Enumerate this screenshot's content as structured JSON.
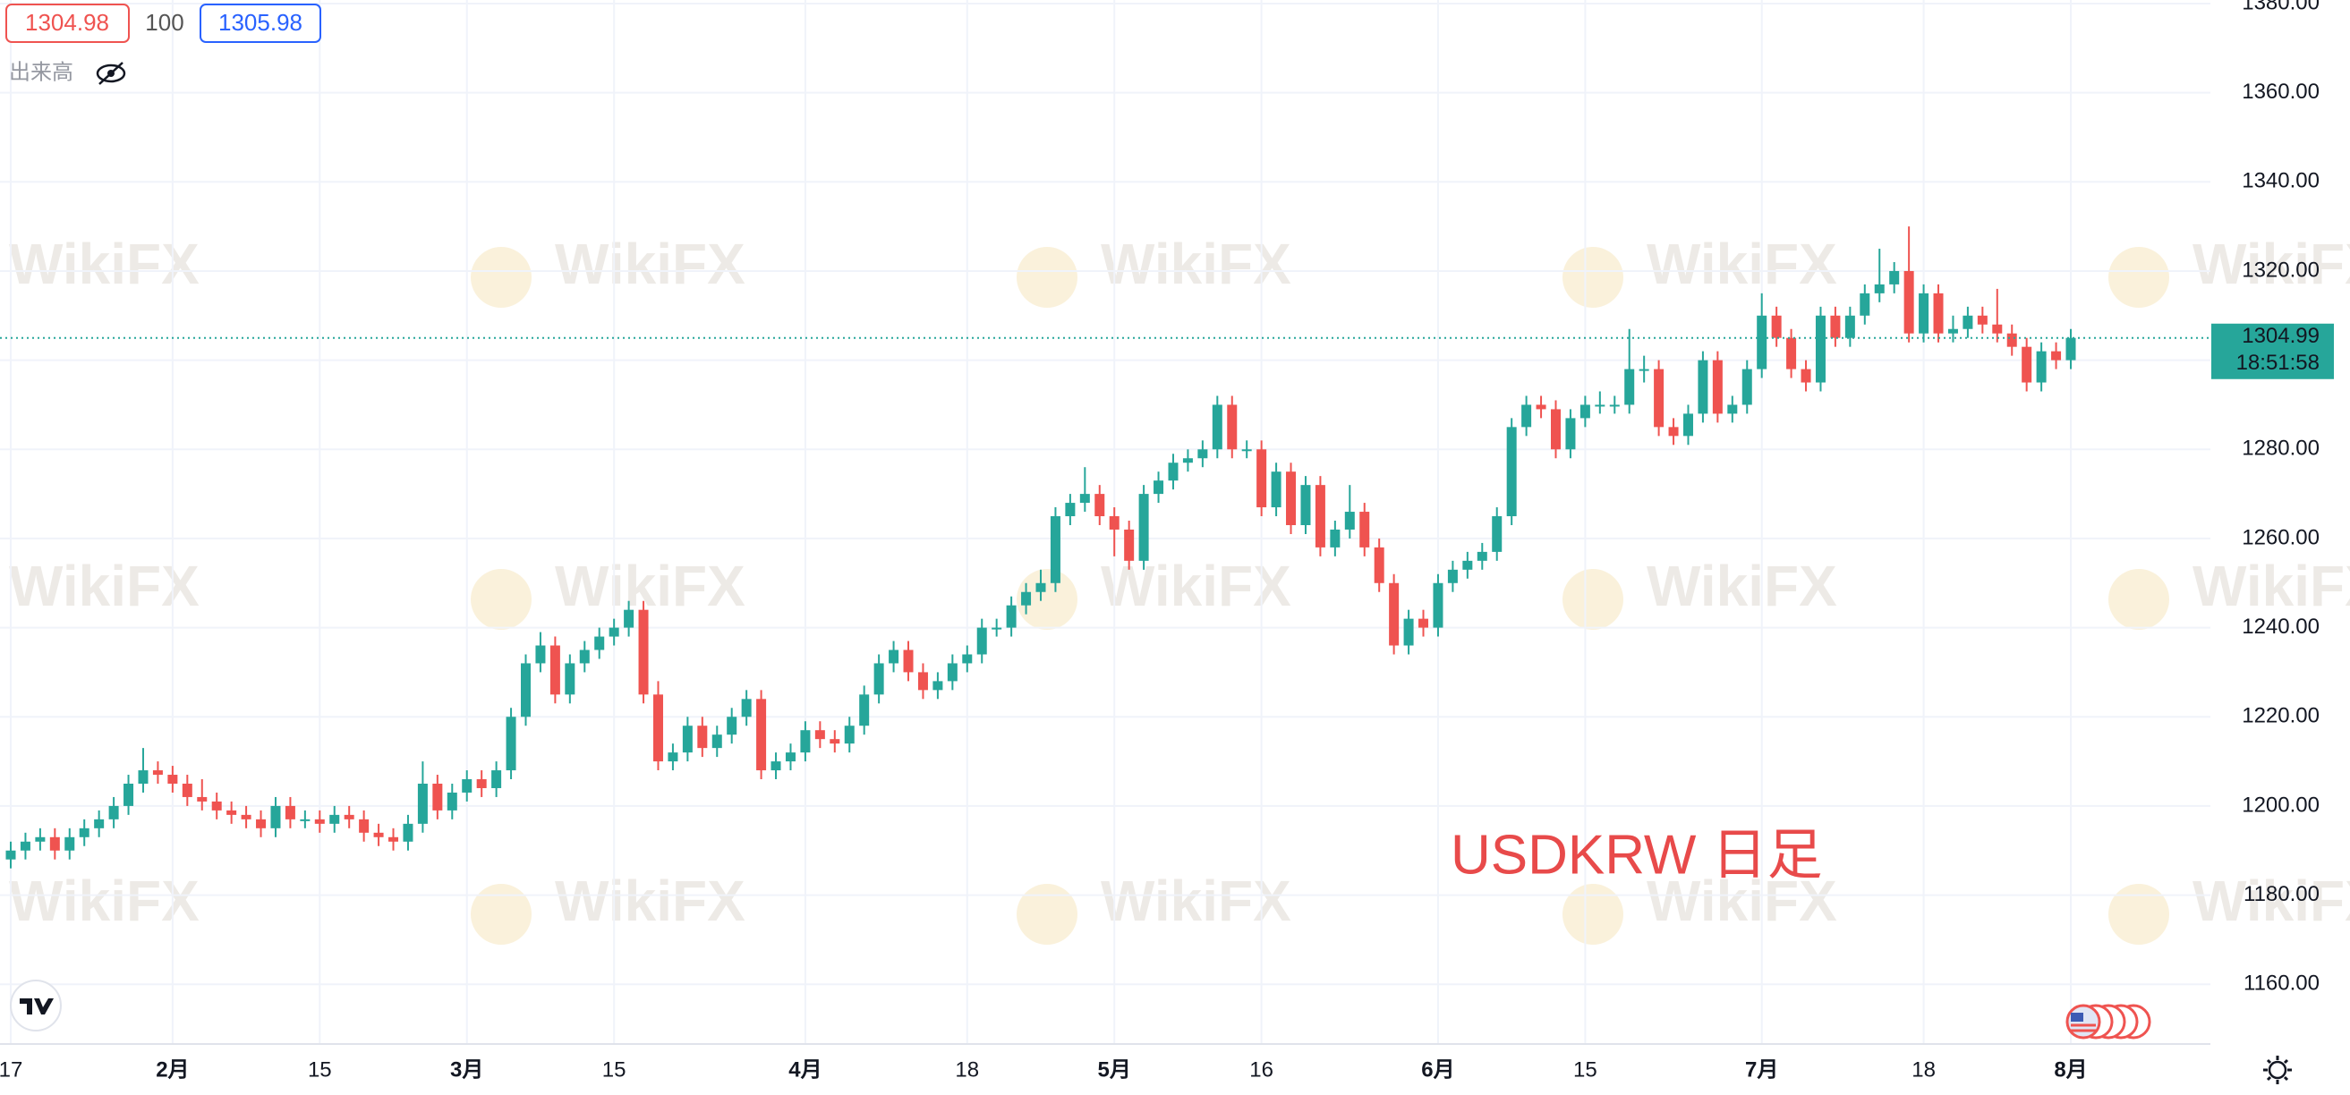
{
  "chart_data": {
    "type": "candlestick",
    "bid": 1304.98,
    "spread": 100,
    "ask": 1305.98,
    "volume_label": "出来高",
    "annotation": "USDKRW 日足",
    "watermark": "WikiFX",
    "last_price": 1304.99,
    "countdown": "18:51:58",
    "up_color": "#26a69a",
    "down_color": "#ef5350",
    "grid": true,
    "x": [
      "01-17",
      "01-18",
      "01-19",
      "01-20",
      "01-21",
      "01-24",
      "01-25",
      "01-26",
      "01-27",
      "01-28",
      "01-31",
      "02-01",
      "02-02",
      "02-03",
      "02-04",
      "02-07",
      "02-08",
      "02-09",
      "02-10",
      "02-11",
      "02-14",
      "02-15",
      "02-16",
      "02-17",
      "02-18",
      "02-21",
      "02-22",
      "02-23",
      "02-24",
      "02-25",
      "02-28",
      "03-01",
      "03-02",
      "03-03",
      "03-04",
      "03-07",
      "03-08",
      "03-09",
      "03-10",
      "03-11",
      "03-14",
      "03-15",
      "03-16",
      "03-17",
      "03-18",
      "03-21",
      "03-22",
      "03-23",
      "03-24",
      "03-25",
      "03-28",
      "03-29",
      "03-30",
      "03-31",
      "04-01",
      "04-04",
      "04-05",
      "04-06",
      "04-07",
      "04-08",
      "04-11",
      "04-12",
      "04-13",
      "04-14",
      "04-15",
      "04-18",
      "04-19",
      "04-20",
      "04-21",
      "04-22",
      "04-25",
      "04-26",
      "04-27",
      "04-28",
      "04-29",
      "05-02",
      "05-03",
      "05-04",
      "05-05",
      "05-06",
      "05-09",
      "05-10",
      "05-11",
      "05-12",
      "05-13",
      "05-16",
      "05-17",
      "05-18",
      "05-19",
      "05-20",
      "05-23",
      "05-24",
      "05-25",
      "05-26",
      "05-27",
      "05-30",
      "05-31",
      "06-01",
      "06-02",
      "06-03",
      "06-06",
      "06-07",
      "06-08",
      "06-09",
      "06-10",
      "06-13",
      "06-14",
      "06-15",
      "06-16",
      "06-17",
      "06-20",
      "06-21",
      "06-22",
      "06-23",
      "06-24",
      "06-27",
      "06-28",
      "06-29",
      "06-30",
      "07-01",
      "07-04",
      "07-05",
      "07-06",
      "07-07",
      "07-08",
      "07-11",
      "07-12",
      "07-13",
      "07-14",
      "07-15",
      "07-18",
      "07-19",
      "07-20",
      "07-21",
      "07-22",
      "07-25",
      "07-26",
      "07-27",
      "07-28",
      "07-29",
      "08-01"
    ],
    "open": [
      1188,
      1190,
      1192,
      1193,
      1190,
      1193,
      1195,
      1197,
      1200,
      1205,
      1208,
      1207,
      1205,
      1202,
      1201,
      1199,
      1198,
      1197,
      1195,
      1200,
      1197,
      1197,
      1196,
      1198,
      1197,
      1194,
      1193,
      1192,
      1196,
      1205,
      1199,
      1203,
      1206,
      1204,
      1208,
      1220,
      1232,
      1236,
      1225,
      1232,
      1235,
      1238,
      1240,
      1244,
      1225,
      1210,
      1212,
      1218,
      1213,
      1216,
      1220,
      1224,
      1208,
      1210,
      1212,
      1217,
      1215,
      1214,
      1218,
      1225,
      1232,
      1235,
      1230,
      1226,
      1228,
      1232,
      1234,
      1240,
      1240,
      1245,
      1248,
      1250,
      1265,
      1268,
      1270,
      1265,
      1262,
      1255,
      1270,
      1273,
      1277,
      1278,
      1280,
      1290,
      1280,
      1280,
      1267,
      1275,
      1263,
      1272,
      1258,
      1262,
      1266,
      1258,
      1250,
      1236,
      1242,
      1240,
      1250,
      1253,
      1255,
      1257,
      1265,
      1285,
      1290,
      1289,
      1280,
      1287,
      1290,
      1290,
      1290,
      1298,
      1298,
      1285,
      1283,
      1288,
      1300,
      1288,
      1290,
      1298,
      1310,
      1305,
      1298,
      1295,
      1310,
      1305,
      1310,
      1315,
      1317,
      1320,
      1306,
      1315,
      1306,
      1307,
      1310,
      1308,
      1306,
      1303,
      1295,
      1302,
      1300
    ],
    "high": [
      1192,
      1194,
      1195,
      1195,
      1195,
      1197,
      1199,
      1202,
      1207,
      1213,
      1210,
      1209,
      1207,
      1206,
      1203,
      1201,
      1200,
      1199,
      1202,
      1202,
      1199,
      1199,
      1200,
      1200,
      1199,
      1196,
      1195,
      1198,
      1210,
      1207,
      1205,
      1208,
      1208,
      1210,
      1222,
      1234,
      1239,
      1238,
      1234,
      1237,
      1240,
      1242,
      1246,
      1246,
      1228,
      1214,
      1220,
      1220,
      1218,
      1222,
      1226,
      1226,
      1212,
      1214,
      1219,
      1219,
      1217,
      1220,
      1227,
      1234,
      1237,
      1237,
      1232,
      1230,
      1234,
      1236,
      1242,
      1242,
      1247,
      1250,
      1253,
      1267,
      1270,
      1276,
      1272,
      1267,
      1264,
      1272,
      1275,
      1279,
      1280,
      1282,
      1292,
      1292,
      1282,
      1282,
      1277,
      1277,
      1274,
      1274,
      1264,
      1272,
      1268,
      1260,
      1252,
      1244,
      1244,
      1252,
      1255,
      1257,
      1259,
      1267,
      1287,
      1292,
      1292,
      1291,
      1289,
      1292,
      1293,
      1292,
      1307,
      1301,
      1300,
      1287,
      1290,
      1302,
      1302,
      1292,
      1300,
      1315,
      1312,
      1307,
      1300,
      1312,
      1312,
      1312,
      1317,
      1325,
      1322,
      1330,
      1317,
      1317,
      1310,
      1312,
      1312,
      1316,
      1308,
      1305,
      1304,
      1304,
      1307
    ],
    "low": [
      1186,
      1188,
      1190,
      1188,
      1188,
      1191,
      1193,
      1195,
      1198,
      1203,
      1205,
      1203,
      1200,
      1199,
      1197,
      1196,
      1195,
      1193,
      1193,
      1195,
      1195,
      1194,
      1194,
      1195,
      1192,
      1191,
      1190,
      1190,
      1194,
      1197,
      1197,
      1201,
      1202,
      1202,
      1206,
      1218,
      1230,
      1223,
      1223,
      1230,
      1233,
      1236,
      1238,
      1223,
      1208,
      1208,
      1210,
      1211,
      1211,
      1214,
      1218,
      1206,
      1206,
      1208,
      1210,
      1213,
      1212,
      1212,
      1216,
      1223,
      1230,
      1228,
      1224,
      1224,
      1226,
      1230,
      1232,
      1238,
      1238,
      1243,
      1246,
      1248,
      1263,
      1266,
      1263,
      1256,
      1253,
      1253,
      1268,
      1271,
      1275,
      1276,
      1278,
      1278,
      1278,
      1265,
      1265,
      1261,
      1261,
      1256,
      1256,
      1260,
      1256,
      1248,
      1234,
      1234,
      1238,
      1238,
      1248,
      1251,
      1253,
      1255,
      1263,
      1283,
      1287,
      1278,
      1278,
      1285,
      1288,
      1288,
      1288,
      1295,
      1283,
      1281,
      1281,
      1286,
      1286,
      1286,
      1288,
      1296,
      1303,
      1296,
      1293,
      1293,
      1303,
      1303,
      1308,
      1313,
      1315,
      1304,
      1304,
      1304,
      1304,
      1305,
      1306,
      1304,
      1301,
      1293,
      1293,
      1298,
      1298
    ],
    "close": [
      1190,
      1192,
      1193,
      1190,
      1193,
      1195,
      1197,
      1200,
      1205,
      1208,
      1207,
      1205,
      1202,
      1201,
      1199,
      1198,
      1197,
      1195,
      1200,
      1197,
      1197,
      1196,
      1198,
      1197,
      1194,
      1193,
      1192,
      1196,
      1205,
      1199,
      1203,
      1206,
      1204,
      1208,
      1220,
      1232,
      1236,
      1225,
      1232,
      1235,
      1238,
      1240,
      1244,
      1225,
      1210,
      1212,
      1218,
      1213,
      1216,
      1220,
      1224,
      1208,
      1210,
      1212,
      1217,
      1215,
      1214,
      1218,
      1225,
      1232,
      1235,
      1230,
      1226,
      1228,
      1232,
      1234,
      1240,
      1240,
      1245,
      1248,
      1250,
      1265,
      1268,
      1270,
      1265,
      1262,
      1255,
      1270,
      1273,
      1277,
      1278,
      1280,
      1290,
      1280,
      1280,
      1267,
      1275,
      1263,
      1272,
      1258,
      1262,
      1266,
      1258,
      1250,
      1236,
      1242,
      1240,
      1250,
      1253,
      1255,
      1257,
      1265,
      1285,
      1290,
      1289,
      1280,
      1287,
      1290,
      1290,
      1290,
      1298,
      1298,
      1285,
      1283,
      1288,
      1300,
      1288,
      1290,
      1298,
      1310,
      1305,
      1298,
      1295,
      1310,
      1305,
      1310,
      1315,
      1317,
      1320,
      1306,
      1315,
      1306,
      1307,
      1310,
      1308,
      1306,
      1303,
      1295,
      1302,
      1300,
      1305
    ],
    "xticks": [
      {
        "value": "01-17",
        "label": "17"
      },
      {
        "value": "02-01",
        "label": "2月"
      },
      {
        "value": "02-15",
        "label": "15"
      },
      {
        "value": "03-01",
        "label": "3月"
      },
      {
        "value": "03-15",
        "label": "15"
      },
      {
        "value": "04-01",
        "label": "4月"
      },
      {
        "value": "04-18",
        "label": "18"
      },
      {
        "value": "05-02",
        "label": "5月"
      },
      {
        "value": "05-16",
        "label": "16"
      },
      {
        "value": "06-01",
        "label": "6月"
      },
      {
        "value": "06-15",
        "label": "15"
      },
      {
        "value": "07-01",
        "label": "7月"
      },
      {
        "value": "07-18",
        "label": "18"
      },
      {
        "value": "08-01",
        "label": "8月"
      }
    ],
    "ylim": [
      1146.6,
      1380.8
    ],
    "yticks": [
      {
        "value": 1160,
        "label": "1160.00"
      },
      {
        "value": 1180,
        "label": "1180.00"
      },
      {
        "value": 1200,
        "label": "1200.00"
      },
      {
        "value": 1220,
        "label": "1220.00"
      },
      {
        "value": 1240,
        "label": "1240.00"
      },
      {
        "value": 1260,
        "label": "1260.00"
      },
      {
        "value": 1280,
        "label": "1280.00"
      },
      {
        "value": 1300,
        "label": "1300.00"
      },
      {
        "value": 1320,
        "label": "1320.00"
      },
      {
        "value": 1340,
        "label": "1340.00"
      },
      {
        "value": 1360,
        "label": "1360.00"
      },
      {
        "value": 1380,
        "label": "1380.00"
      }
    ]
  }
}
